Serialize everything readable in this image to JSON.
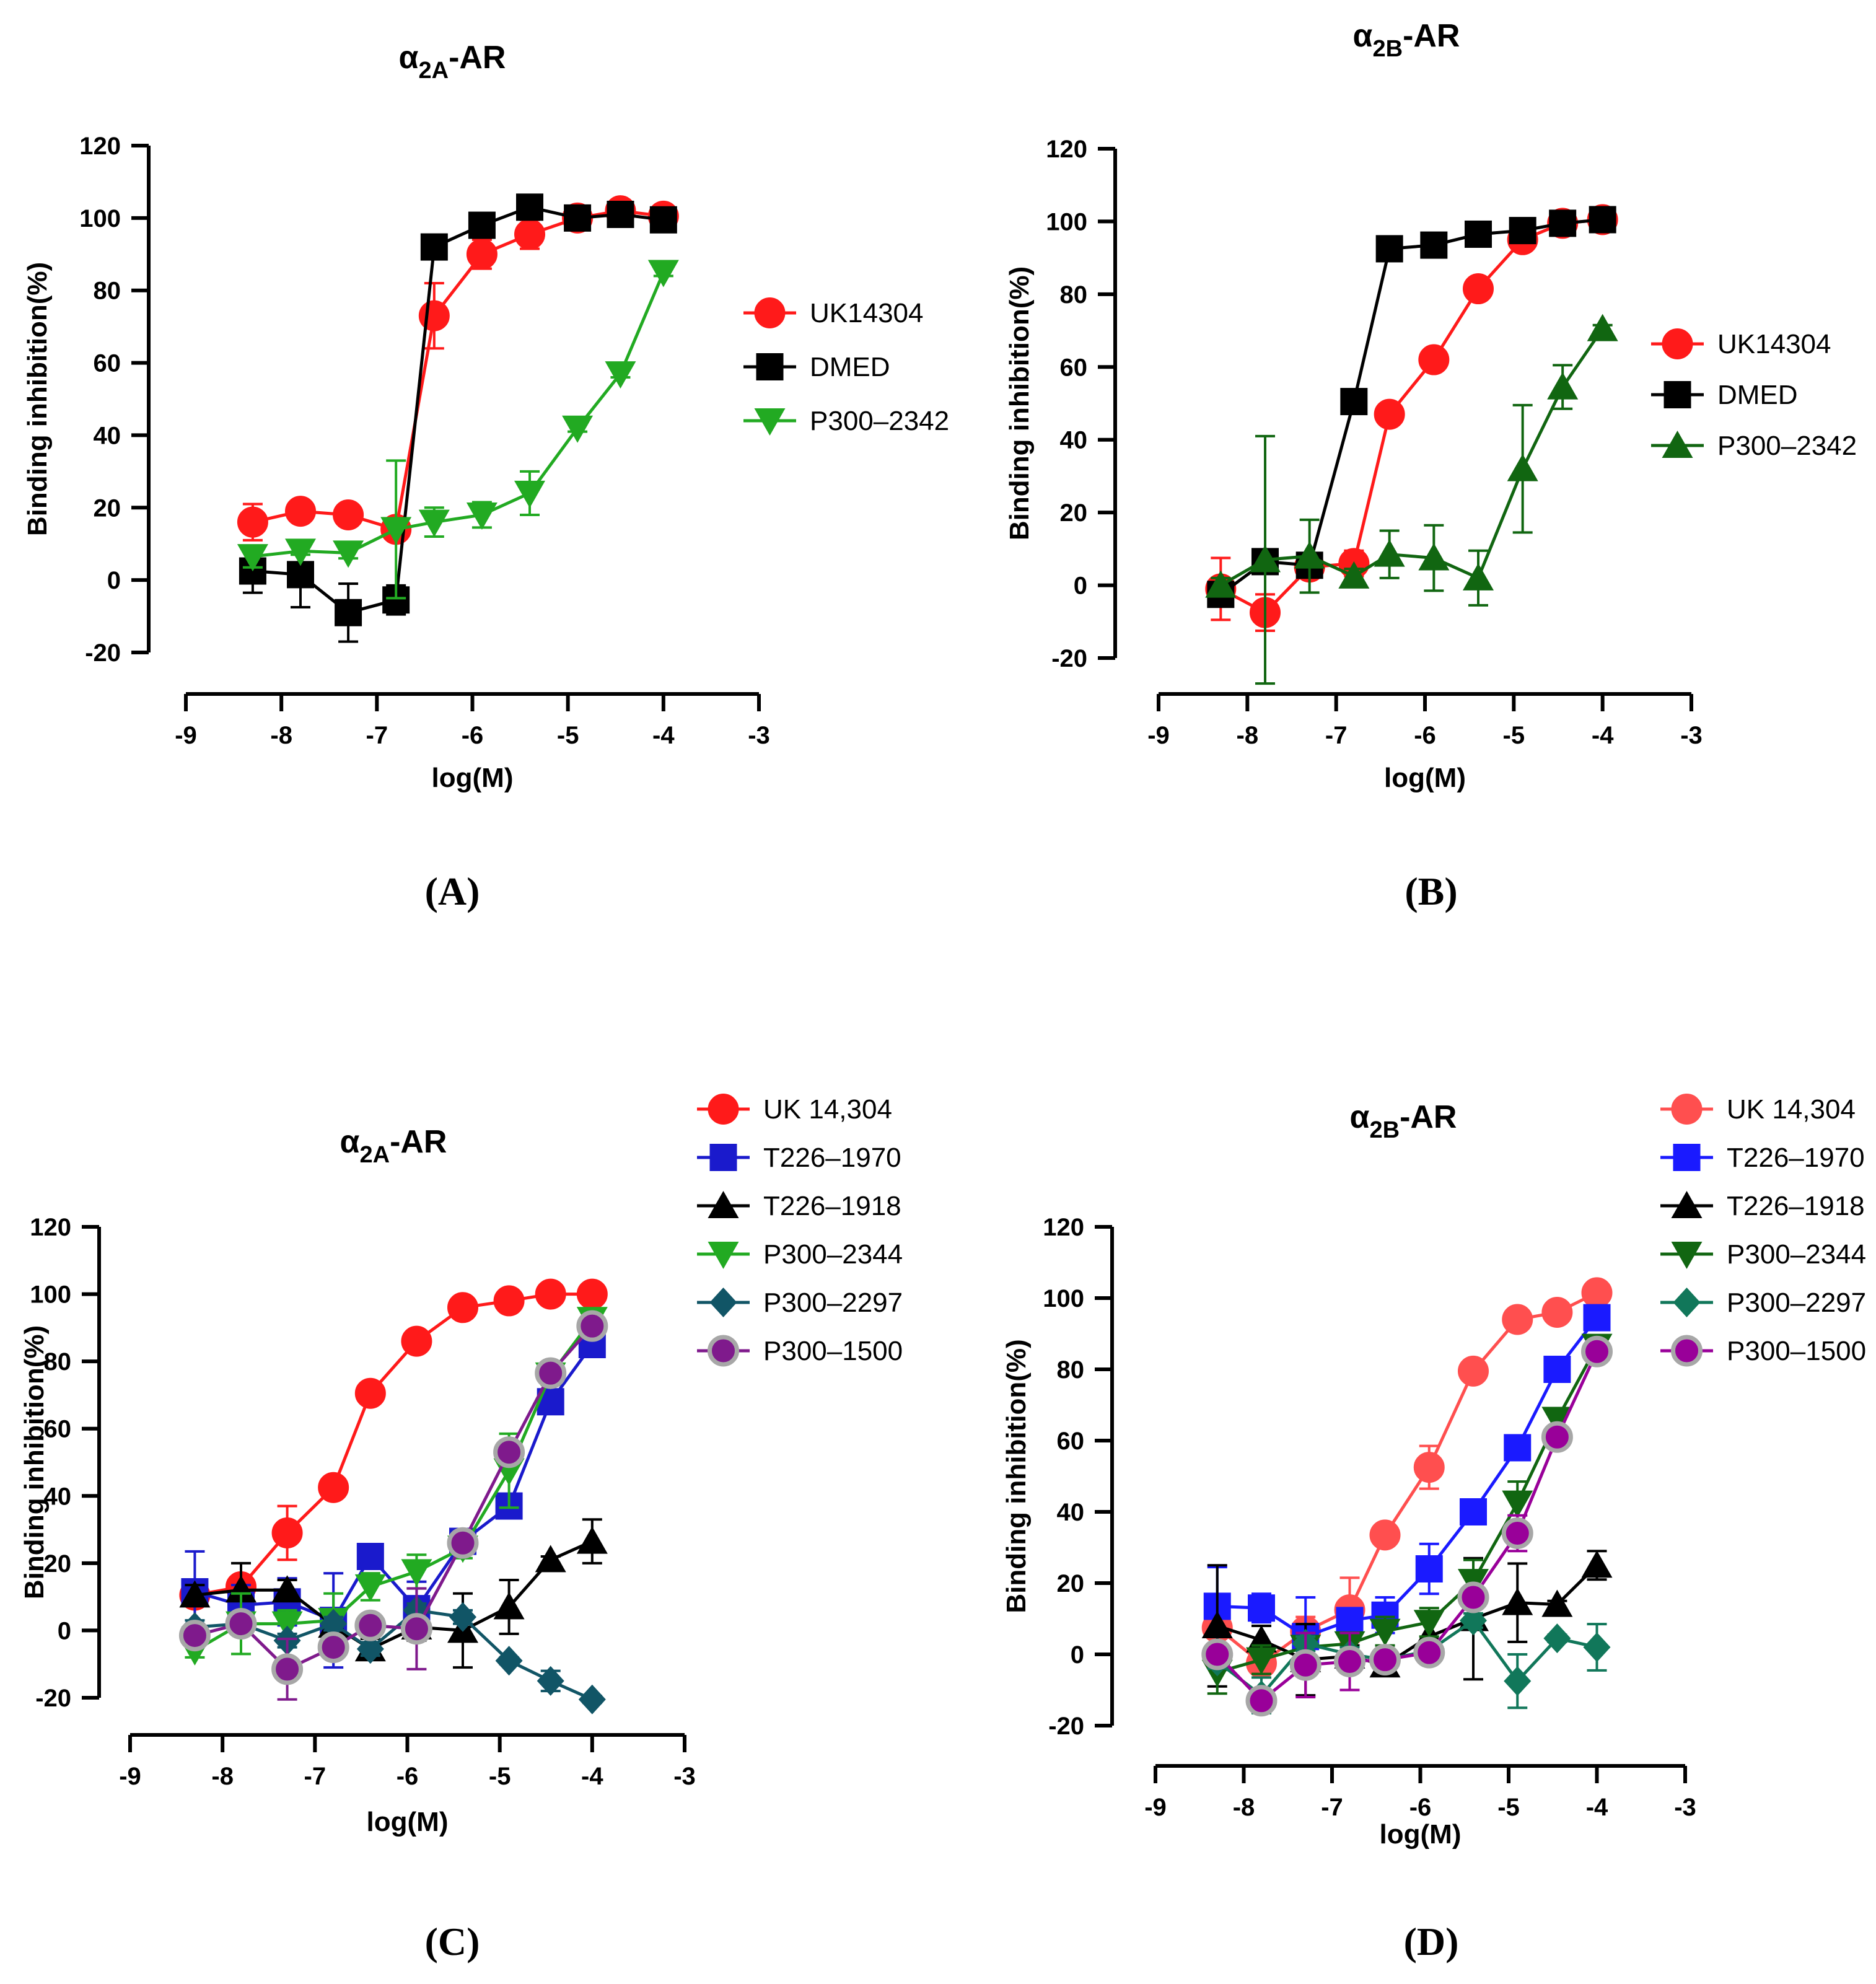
{
  "panel_labels": [
    "(A)",
    "(B)",
    "(C)",
    "(D)"
  ],
  "chart_data": [
    {
      "type": "line",
      "title_prefix": "α",
      "title_sub": "2A",
      "title_suffix": "-AR",
      "xlabel": "log(M)",
      "ylabel": "Binding inhibition(%)",
      "xlim": [
        -9,
        -3
      ],
      "ylim": [
        -20,
        120
      ],
      "xticks": [
        "-9",
        "-8",
        "-7",
        "-6",
        "-5",
        "-4",
        "-3"
      ],
      "yticks": [
        "-20",
        "0",
        "20",
        "40",
        "60",
        "80",
        "100",
        "120"
      ],
      "series": [
        {
          "name": "UK14304",
          "color": "#ff1a1a",
          "marker": "circle",
          "x": [
            -8.3,
            -7.8,
            -7.3,
            -6.8,
            -6.4,
            -5.9,
            -5.4,
            -4.9,
            -4.45,
            -4.0
          ],
          "y": [
            16,
            19,
            18,
            14,
            73,
            90,
            95.5,
            100,
            102,
            100.5
          ],
          "err": [
            5,
            1.5,
            3,
            2,
            9,
            4,
            4,
            2,
            2,
            2
          ]
        },
        {
          "name": "DMED",
          "color": "#000000",
          "marker": "square",
          "x": [
            -8.3,
            -7.8,
            -7.3,
            -6.8,
            -6.4,
            -5.9,
            -5.4,
            -4.9,
            -4.45,
            -4.0
          ],
          "y": [
            2.5,
            1.5,
            -9,
            -5.5,
            92,
            98,
            103,
            100,
            101,
            99.5
          ],
          "err": [
            6,
            9,
            8,
            4,
            2,
            2,
            2,
            2,
            2,
            2
          ]
        },
        {
          "name": "P300–2342",
          "color": "#22aa22",
          "marker": "triangle-down",
          "x": [
            -8.3,
            -7.8,
            -7.3,
            -6.8,
            -6.4,
            -5.9,
            -5.4,
            -4.9,
            -4.45,
            -4.0
          ],
          "y": [
            6.5,
            8,
            7.5,
            14,
            16,
            18,
            24,
            42,
            57,
            85
          ],
          "err": [
            3,
            1,
            1.5,
            19,
            4,
            3.5,
            6,
            1,
            1,
            1
          ]
        }
      ]
    },
    {
      "type": "line",
      "title_prefix": "α",
      "title_sub": "2B",
      "title_suffix": "-AR",
      "xlabel": "log(M)",
      "ylabel": "Binding inhibition(%)",
      "xlim": [
        -9,
        -3
      ],
      "ylim": [
        -20,
        120
      ],
      "xticks": [
        "-9",
        "-8",
        "-7",
        "-6",
        "-5",
        "-4",
        "-3"
      ],
      "yticks": [
        "-20",
        "0",
        "20",
        "40",
        "60",
        "80",
        "100",
        "120"
      ],
      "series": [
        {
          "name": "UK14304",
          "color": "#ff1a1a",
          "marker": "circle",
          "x": [
            -8.3,
            -7.8,
            -7.3,
            -6.8,
            -6.4,
            -5.9,
            -5.4,
            -4.9,
            -4.45,
            -4.0
          ],
          "y": [
            -1,
            -7.5,
            5,
            6,
            47,
            62,
            81.5,
            95,
            99.5,
            100.5
          ],
          "err": [
            8.5,
            5,
            2,
            3.5,
            1.5,
            1.5,
            1.5,
            1.5,
            1.5,
            1.5
          ]
        },
        {
          "name": "DMED",
          "color": "#000000",
          "marker": "square",
          "x": [
            -8.3,
            -7.8,
            -7.3,
            -6.8,
            -6.4,
            -5.9,
            -5.4,
            -4.9,
            -4.45,
            -4.0
          ],
          "y": [
            -2.5,
            6.5,
            5.5,
            50.5,
            92.5,
            93.5,
            96.5,
            97.5,
            99.5,
            100.5
          ],
          "err": [
            3,
            2,
            2,
            1.5,
            2,
            2,
            2,
            2,
            2,
            2
          ]
        },
        {
          "name": "P300–2342",
          "color": "#116611",
          "marker": "triangle-up",
          "x": [
            -8.3,
            -7.8,
            -7.3,
            -6.8,
            -6.4,
            -5.9,
            -5.4,
            -4.9,
            -4.45,
            -4.0
          ],
          "y": [
            0,
            7,
            8,
            2.5,
            8.5,
            7.5,
            2,
            32,
            54.5,
            70.5
          ],
          "err": [
            2,
            34,
            10,
            2,
            6.5,
            9,
            7.5,
            17.5,
            6,
            1
          ]
        }
      ],
      "legend_offset": true
    },
    {
      "type": "line",
      "title_prefix": "α",
      "title_sub": "2A",
      "title_suffix": "-AR",
      "xlabel": "log(M)",
      "ylabel": "Binding inhibition(%)",
      "xlim": [
        -9,
        -3
      ],
      "ylim": [
        -20,
        120
      ],
      "xticks": [
        "-9",
        "-8",
        "-7",
        "-6",
        "-5",
        "-4",
        "-3"
      ],
      "yticks": [
        "-20",
        "0",
        "20",
        "40",
        "60",
        "80",
        "100",
        "120"
      ],
      "series": [
        {
          "name": "UK 14,304",
          "color": "#ff1a1a",
          "marker": "circle",
          "x": [
            -8.3,
            -7.8,
            -7.3,
            -6.8,
            -6.4,
            -5.9,
            -5.4,
            -4.9,
            -4.45,
            -4.0
          ],
          "y": [
            10.5,
            13,
            29,
            42.5,
            70.5,
            86,
            96,
            98,
            100,
            100
          ],
          "err": [
            1.5,
            1.5,
            8,
            1,
            1,
            1,
            1,
            1,
            1,
            1
          ]
        },
        {
          "name": "T226–1970",
          "color": "#1a1acc",
          "marker": "square",
          "x": [
            -8.3,
            -7.8,
            -7.3,
            -6.8,
            -6.4,
            -5.9,
            -5.4,
            -4.9,
            -4.45,
            -4.0
          ],
          "y": [
            11.5,
            7.5,
            8.5,
            3,
            22,
            6.5,
            26.5,
            37,
            68,
            85
          ],
          "err": [
            12,
            6,
            7,
            14,
            2,
            8,
            2,
            2,
            2,
            2
          ]
        },
        {
          "name": "T226–1918",
          "color": "#000000",
          "marker": "triangle-up",
          "x": [
            -8.3,
            -7.8,
            -7.3,
            -6.8,
            -6.4,
            -5.9,
            -5.4,
            -4.9,
            -4.45,
            -4.0
          ],
          "y": [
            10.5,
            12,
            12,
            1.5,
            -5.5,
            1,
            0,
            7,
            21,
            26.5
          ],
          "err": [
            3,
            8,
            3,
            4,
            3,
            4,
            11,
            8,
            1,
            6.5
          ]
        },
        {
          "name": "P300–2344",
          "color": "#22aa22",
          "marker": "triangle-down",
          "x": [
            -8.3,
            -7.8,
            -7.3,
            -6.8,
            -6.4,
            -5.9,
            -5.4,
            -4.9,
            -4.45,
            -4.0
          ],
          "y": [
            -6,
            2,
            2,
            3,
            13,
            17.5,
            24.5,
            47.5,
            76,
            92.5
          ],
          "err": [
            2,
            9,
            4,
            8,
            4,
            5,
            3,
            11,
            3,
            2
          ]
        },
        {
          "name": "P300–2297",
          "color": "#115566",
          "marker": "diamond",
          "x": [
            -8.3,
            -7.8,
            -7.3,
            -6.8,
            -6.4,
            -5.9,
            -5.4,
            -4.9,
            -4.45,
            -4.0
          ],
          "y": [
            1,
            2,
            -3,
            2,
            -5.5,
            6,
            4,
            -9,
            -15,
            -20.5
          ],
          "err": [
            2,
            2,
            2,
            2,
            2,
            2,
            2,
            1,
            3,
            1
          ]
        },
        {
          "name": "P300–1500",
          "color": "#7f1a8c",
          "marker": "circle-gray",
          "x": [
            -8.3,
            -7.8,
            -7.3,
            -6.8,
            -6.4,
            -5.9,
            -5.4,
            -4.9,
            -4.45,
            -4.0
          ],
          "y": [
            -1.5,
            2,
            -11.5,
            -5,
            1.5,
            0.5,
            26,
            53,
            76.5,
            90.5
          ],
          "err": [
            2,
            2,
            9,
            2,
            2,
            12,
            3,
            3,
            3,
            2
          ]
        }
      ]
    },
    {
      "type": "line",
      "title_prefix": "α",
      "title_sub": "2B",
      "title_suffix": "-AR",
      "xlabel": "log(M)",
      "ylabel": "Binding inhibition(%)",
      "xlim": [
        -9,
        -3
      ],
      "ylim": [
        -20,
        120
      ],
      "xticks": [
        "-9",
        "-8",
        "-7",
        "-6",
        "-5",
        "-4",
        "-3"
      ],
      "yticks": [
        "-20",
        "0",
        "20",
        "40",
        "60",
        "80",
        "100",
        "120"
      ],
      "series": [
        {
          "name": "UK 14,304",
          "color": "#ff4f4f",
          "marker": "circle",
          "x": [
            -8.3,
            -7.8,
            -7.3,
            -6.8,
            -6.4,
            -5.9,
            -5.4,
            -4.9,
            -4.45,
            -4.0
          ],
          "y": [
            7.5,
            -2.5,
            6.5,
            12.5,
            33.5,
            52.5,
            79.5,
            94,
            96,
            101.5
          ],
          "err": [
            3,
            3,
            4,
            9,
            1.5,
            6,
            1.5,
            1.5,
            3,
            3
          ]
        },
        {
          "name": "T226–1970",
          "color": "#1a1aff",
          "marker": "square",
          "x": [
            -8.3,
            -7.8,
            -7.3,
            -6.8,
            -6.4,
            -5.9,
            -5.4,
            -4.9,
            -4.45,
            -4.0
          ],
          "y": [
            13.5,
            13,
            5,
            9.5,
            11,
            24,
            40,
            58,
            80,
            94.5
          ],
          "err": [
            11,
            4,
            11,
            2,
            5,
            7,
            2,
            2,
            2,
            2
          ]
        },
        {
          "name": "T226–1918",
          "color": "#000000",
          "marker": "triangle-up",
          "x": [
            -8.3,
            -7.8,
            -7.3,
            -6.8,
            -6.4,
            -5.9,
            -5.4,
            -4.9,
            -4.45,
            -4.0
          ],
          "y": [
            8,
            4,
            -1.5,
            -0.5,
            -3,
            5,
            10,
            14.5,
            14,
            25
          ],
          "err": [
            17,
            4,
            10,
            3,
            2,
            7,
            17,
            11,
            1,
            4
          ]
        },
        {
          "name": "P300–2344",
          "color": "#116611",
          "marker": "triangle-down",
          "x": [
            -8.3,
            -7.8,
            -7.3,
            -6.8,
            -6.4,
            -5.9,
            -5.4,
            -4.9,
            -4.45,
            -4.0
          ],
          "y": [
            -5,
            -1.5,
            2,
            3,
            6.5,
            9,
            20.5,
            42.5,
            66,
            86.5
          ],
          "err": [
            6,
            4,
            4,
            3,
            4,
            4,
            6,
            6,
            3,
            2
          ]
        },
        {
          "name": "P300–2297",
          "color": "#11775a",
          "marker": "diamond",
          "x": [
            -8.3,
            -7.8,
            -7.3,
            -6.8,
            -6.4,
            -5.9,
            -5.4,
            -4.9,
            -4.45,
            -4.0
          ],
          "y": [
            -2,
            -11.5,
            3,
            0,
            -1.5,
            1,
            9.5,
            -7.5,
            4.5,
            2
          ],
          "err": [
            2,
            5,
            2,
            2,
            2,
            2,
            2,
            7.5,
            1,
            6.5
          ]
        },
        {
          "name": "P300–1500",
          "color": "#990099",
          "marker": "circle-gray",
          "x": [
            -8.3,
            -7.8,
            -7.3,
            -6.8,
            -6.4,
            -5.9,
            -5.4,
            -4.9,
            -4.45,
            -4.0
          ],
          "y": [
            0,
            -13,
            -3,
            -2,
            -1.5,
            0.5,
            16,
            34,
            61,
            85
          ],
          "err": [
            2,
            2,
            9,
            8,
            2,
            2,
            2,
            5,
            2,
            2
          ]
        }
      ]
    }
  ]
}
